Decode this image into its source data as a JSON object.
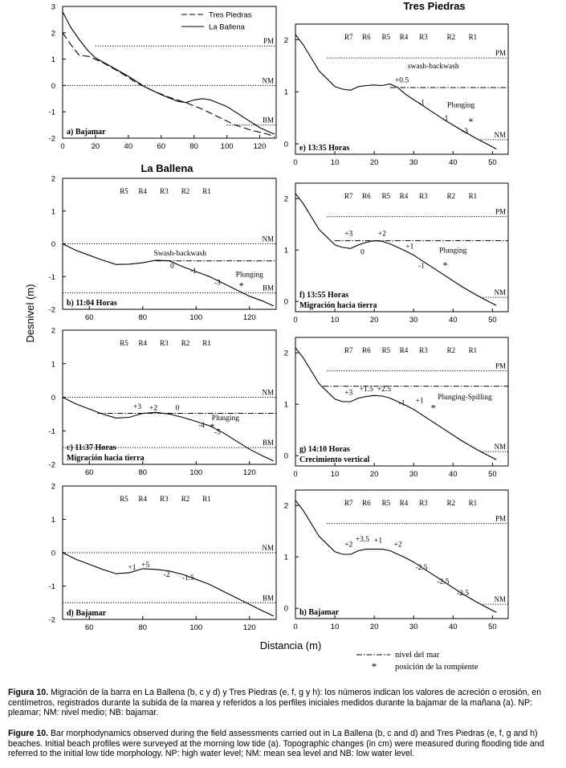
{
  "figure": {
    "ylabel": "Desnivel (m)",
    "xlabel": "Distancia (m)",
    "left_header": "La Ballena",
    "right_header": "Tres Piedras",
    "legend": {
      "series": [
        "Tres Piedras",
        "La Ballena"
      ]
    },
    "legend_bottom": {
      "sea": "nivel del mar",
      "break": "posición de la rompiente"
    }
  },
  "caption": {
    "es_bold": "Figura 10.",
    "es_text": " Migración de la barra en La Ballena (b, c y d) y Tres Piedras (e, f, g y h): los números indican los valores de acreción o erosión, en centímetros, registrados durante la subida de la marea y referidos a los perfiles iniciales medidos durante la bajamar de la mañana (a). NP: pleamar; NM: nivel medio; NB: bajamar.",
    "en_bold": "Figure 10.",
    "en_text": " Bar morphodynamics observed during the field assessments carried out in La Ballena (b, c and d) and Tres Piedras (e, f, g and h) beaches. Initial beach profiles were surveyed at the morning low tide (a). Topographic changes (in cm) were measured during flooding tide and referred to the initial low tide morphology. NP: high water level; NM: mean sea level and NB: low water level."
  },
  "chart_data": [
    {
      "id": "a",
      "type": "line",
      "title": "a) Bajamar",
      "xlim": [
        0,
        130
      ],
      "ylim": [
        -2,
        3
      ],
      "xticks": [
        0,
        20,
        40,
        60,
        80,
        100,
        120
      ],
      "yticks": [
        -2,
        -1,
        0,
        1,
        2,
        3
      ],
      "levels": [
        {
          "label": "PM",
          "y": 1.5
        },
        {
          "label": "NM",
          "y": 0
        },
        {
          "label": "BM",
          "y": -1.5
        }
      ],
      "series": [
        {
          "name": "Tres Piedras",
          "dashed": true,
          "x": [
            0,
            5,
            10,
            16,
            25,
            35,
            45,
            55,
            65,
            75,
            85,
            95,
            105,
            115,
            125,
            129
          ],
          "y": [
            2.0,
            1.55,
            1.15,
            1.1,
            0.85,
            0.5,
            0.1,
            -0.2,
            -0.45,
            -0.65,
            -0.9,
            -1.2,
            -1.5,
            -1.7,
            -1.85,
            -1.95
          ]
        },
        {
          "name": "La Ballena",
          "dashed": false,
          "x": [
            0,
            5,
            10,
            15,
            20,
            30,
            40,
            50,
            60,
            70,
            75,
            80,
            85,
            90,
            100,
            110,
            120,
            129
          ],
          "y": [
            2.8,
            2.2,
            1.75,
            1.35,
            1.05,
            0.7,
            0.35,
            -0.05,
            -0.35,
            -0.6,
            -0.65,
            -0.55,
            -0.5,
            -0.55,
            -0.8,
            -1.2,
            -1.6,
            -1.85
          ]
        }
      ]
    },
    {
      "id": "b",
      "type": "line",
      "title": "b) 11:04 Horas",
      "xlim": [
        50,
        130
      ],
      "ylim": [
        -2,
        2
      ],
      "xticks": [
        60,
        80,
        100,
        120
      ],
      "yticks": [
        -2,
        -1,
        0,
        1,
        2
      ],
      "levels": [
        {
          "label": "NM",
          "y": 0
        },
        {
          "label": "BM",
          "y": -1.5
        }
      ],
      "sea_level": -0.52,
      "sea_from": 85,
      "break_point": [
        117,
        -1.25
      ],
      "rods": [
        {
          "label": "R5",
          "x": 73
        },
        {
          "label": "R4",
          "x": 80
        },
        {
          "label": "R3",
          "x": 88
        },
        {
          "label": "R2",
          "x": 96
        },
        {
          "label": "R1",
          "x": 104
        }
      ],
      "labels": [
        {
          "text": "Swash-backwash",
          "x": 94,
          "y": -0.35
        },
        {
          "text": "0",
          "x": 91,
          "y": -0.75
        },
        {
          "text": "-1",
          "x": 99,
          "y": -0.9
        },
        {
          "text": "-3",
          "x": 108,
          "y": -1.25
        },
        {
          "text": "Plunging",
          "x": 120,
          "y": -1.0
        }
      ],
      "x": [
        50,
        55,
        60,
        65,
        70,
        75,
        80,
        85,
        90,
        95,
        100,
        105,
        110,
        115,
        120,
        125,
        129
      ],
      "y": [
        0,
        -0.2,
        -0.35,
        -0.5,
        -0.63,
        -0.62,
        -0.58,
        -0.5,
        -0.52,
        -0.7,
        -0.85,
        -1.0,
        -1.2,
        -1.4,
        -1.6,
        -1.75,
        -1.9
      ]
    },
    {
      "id": "c",
      "type": "line",
      "title": "c) 11:37 Horas",
      "subtitle": "Migración hacia tierra",
      "xlim": [
        50,
        130
      ],
      "ylim": [
        -2,
        2
      ],
      "xticks": [
        60,
        80,
        100,
        120
      ],
      "yticks": [
        -2,
        -1,
        0,
        1,
        2
      ],
      "levels": [
        {
          "label": "NM",
          "y": 0
        },
        {
          "label": "BM",
          "y": -1.5
        }
      ],
      "sea_level": -0.48,
      "sea_from": 63,
      "break_point": [
        106,
        -0.85
      ],
      "rods": [
        {
          "label": "R5",
          "x": 73
        },
        {
          "label": "R4",
          "x": 80
        },
        {
          "label": "R3",
          "x": 88
        },
        {
          "label": "R2",
          "x": 96
        },
        {
          "label": "R1",
          "x": 104
        }
      ],
      "labels": [
        {
          "text": "+3",
          "x": 78,
          "y": -0.35
        },
        {
          "text": "+2",
          "x": 84,
          "y": -0.38
        },
        {
          "text": "0",
          "x": 93,
          "y": -0.38
        },
        {
          "text": "-4",
          "x": 102,
          "y": -0.9
        },
        {
          "text": "-5",
          "x": 108,
          "y": -1.1
        },
        {
          "text": "Plunging",
          "x": 111,
          "y": -0.68
        }
      ],
      "x": [
        50,
        55,
        60,
        65,
        70,
        75,
        80,
        85,
        90,
        95,
        100,
        105,
        110,
        115,
        120,
        125,
        129
      ],
      "y": [
        0,
        -0.2,
        -0.35,
        -0.5,
        -0.62,
        -0.6,
        -0.48,
        -0.45,
        -0.5,
        -0.6,
        -0.72,
        -0.85,
        -1.05,
        -1.3,
        -1.55,
        -1.75,
        -1.9
      ]
    },
    {
      "id": "d",
      "type": "line",
      "title": "d) Bajamar",
      "xlim": [
        50,
        130
      ],
      "ylim": [
        -2,
        2
      ],
      "xticks": [
        60,
        80,
        100,
        120
      ],
      "yticks": [
        -2,
        -1,
        0,
        1,
        2
      ],
      "levels": [
        {
          "label": "NM",
          "y": 0
        },
        {
          "label": "BM",
          "y": -1.5
        }
      ],
      "rods": [
        {
          "label": "R5",
          "x": 73
        },
        {
          "label": "R4",
          "x": 80
        },
        {
          "label": "R3",
          "x": 88
        },
        {
          "label": "R2",
          "x": 96
        },
        {
          "label": "R1",
          "x": 104
        }
      ],
      "labels": [
        {
          "text": "+1",
          "x": 76,
          "y": -0.5
        },
        {
          "text": "+5",
          "x": 81,
          "y": -0.43
        },
        {
          "text": "-2",
          "x": 89,
          "y": -0.72
        },
        {
          "text": "-1.5",
          "x": 97,
          "y": -0.82
        }
      ],
      "x": [
        50,
        55,
        60,
        65,
        70,
        75,
        80,
        85,
        90,
        95,
        100,
        105,
        110,
        115,
        120,
        125,
        129
      ],
      "y": [
        0,
        -0.2,
        -0.35,
        -0.5,
        -0.63,
        -0.6,
        -0.48,
        -0.5,
        -0.55,
        -0.65,
        -0.8,
        -0.95,
        -1.15,
        -1.35,
        -1.55,
        -1.75,
        -1.9
      ]
    },
    {
      "id": "e",
      "type": "line",
      "title": "e) 13:35 Horas",
      "xlim": [
        0,
        54
      ],
      "ylim": [
        -0.2,
        2.3
      ],
      "xticks": [
        0,
        10,
        20,
        30,
        40,
        50
      ],
      "yticks": [
        0,
        1,
        2
      ],
      "levels": [
        {
          "label": "PM",
          "y": 1.65
        },
        {
          "label": "NM",
          "y": 0.08
        }
      ],
      "sea_level": 1.08,
      "sea_from": 24,
      "break_point": [
        44.5,
        0.45
      ],
      "rods": [
        {
          "label": "R7",
          "x": 13.5
        },
        {
          "label": "R6",
          "x": 18
        },
        {
          "label": "R5",
          "x": 23
        },
        {
          "label": "R4",
          "x": 27.5
        },
        {
          "label": "R3",
          "x": 32.5
        },
        {
          "label": "R2",
          "x": 39.5
        },
        {
          "label": "R1",
          "x": 45
        }
      ],
      "labels": [
        {
          "text": "swash-backwash",
          "x": 35,
          "y": 1.45
        },
        {
          "text": "+0.5",
          "x": 27,
          "y": 1.18
        },
        {
          "text": "-1",
          "x": 32,
          "y": 0.75
        },
        {
          "text": "Plunging",
          "x": 42,
          "y": 0.7
        },
        {
          "text": "-1",
          "x": 38,
          "y": 0.45
        },
        {
          "text": "-3",
          "x": 43,
          "y": 0.2
        },
        {
          "text": "NM",
          "x": 51,
          "y": 0.15
        }
      ],
      "x": [
        0,
        2,
        4,
        6,
        8,
        10,
        12,
        14,
        16,
        18,
        20,
        22,
        24,
        26,
        28,
        30,
        34,
        38,
        42,
        46,
        49,
        51
      ],
      "y": [
        2.1,
        1.9,
        1.65,
        1.4,
        1.25,
        1.1,
        1.05,
        1.03,
        1.1,
        1.12,
        1.13,
        1.12,
        1.15,
        1.08,
        0.95,
        0.85,
        0.65,
        0.45,
        0.27,
        0.1,
        -0.02,
        -0.1
      ]
    },
    {
      "id": "f",
      "type": "line",
      "title": "f) 13:55 Horas",
      "subtitle": "Migración hacia tierra",
      "xlim": [
        0,
        54
      ],
      "ylim": [
        -0.2,
        2.3
      ],
      "xticks": [
        0,
        10,
        20,
        30,
        40,
        50
      ],
      "yticks": [
        0,
        1,
        2
      ],
      "levels": [
        {
          "label": "PM",
          "y": 1.65
        },
        {
          "label": "NM",
          "y": 0.08
        }
      ],
      "sea_level": 1.18,
      "sea_from": 10,
      "break_point": [
        38,
        0.72
      ],
      "rods": [
        {
          "label": "R7",
          "x": 13.5
        },
        {
          "label": "R6",
          "x": 18
        },
        {
          "label": "R5",
          "x": 23
        },
        {
          "label": "R4",
          "x": 27.5
        },
        {
          "label": "R3",
          "x": 32.5
        },
        {
          "label": "R2",
          "x": 39.5
        },
        {
          "label": "R1",
          "x": 45
        }
      ],
      "labels": [
        {
          "text": "+3",
          "x": 13.5,
          "y": 1.28
        },
        {
          "text": "+2",
          "x": 22,
          "y": 1.28
        },
        {
          "text": "0",
          "x": 17,
          "y": 0.92
        },
        {
          "text": "+1",
          "x": 29,
          "y": 1.03
        },
        {
          "text": "Plunging",
          "x": 40,
          "y": 0.95
        },
        {
          "text": "-1",
          "x": 32,
          "y": 0.65
        },
        {
          "text": "NM",
          "x": 51,
          "y": 0.15
        }
      ],
      "x": [
        0,
        2,
        4,
        6,
        8,
        10,
        12,
        14,
        16,
        18,
        20,
        22,
        24,
        26,
        28,
        30,
        34,
        38,
        42,
        46,
        49,
        51
      ],
      "y": [
        2.1,
        1.9,
        1.65,
        1.4,
        1.25,
        1.1,
        1.05,
        1.03,
        1.1,
        1.15,
        1.18,
        1.17,
        1.12,
        1.05,
        0.98,
        0.9,
        0.7,
        0.5,
        0.3,
        0.12,
        0.0,
        -0.08
      ]
    },
    {
      "id": "g",
      "type": "line",
      "title": "g) 14:10 Horas",
      "subtitle": "Crecimiento vertical",
      "xlim": [
        0,
        54
      ],
      "ylim": [
        -0.2,
        2.3
      ],
      "xticks": [
        0,
        10,
        20,
        30,
        40,
        50
      ],
      "yticks": [
        0,
        1,
        2
      ],
      "levels": [
        {
          "label": "PM",
          "y": 1.65
        },
        {
          "label": "NM",
          "y": 0.08
        }
      ],
      "sea_level": 1.35,
      "sea_from": 7,
      "break_point": [
        35,
        0.95
      ],
      "rods": [
        {
          "label": "R7",
          "x": 13.5
        },
        {
          "label": "R6",
          "x": 18
        },
        {
          "label": "R5",
          "x": 23
        },
        {
          "label": "R4",
          "x": 27.5
        },
        {
          "label": "R3",
          "x": 32.5
        },
        {
          "label": "R2",
          "x": 39.5
        },
        {
          "label": "R1",
          "x": 45
        }
      ],
      "labels": [
        {
          "text": "+3",
          "x": 13.5,
          "y": 1.18
        },
        {
          "text": "+1.5",
          "x": 18,
          "y": 1.25
        },
        {
          "text": "+2.5",
          "x": 22.5,
          "y": 1.25
        },
        {
          "text": "-1",
          "x": 27,
          "y": 0.98
        },
        {
          "text": "+1",
          "x": 31.5,
          "y": 1.03
        },
        {
          "text": "Plunging-Spilling",
          "x": 43,
          "y": 1.1
        },
        {
          "text": "NM",
          "x": 51,
          "y": 0.15
        }
      ],
      "x": [
        0,
        2,
        4,
        6,
        8,
        10,
        12,
        14,
        16,
        18,
        20,
        22,
        24,
        26,
        28,
        30,
        34,
        38,
        42,
        46,
        49,
        51
      ],
      "y": [
        2.1,
        1.9,
        1.65,
        1.4,
        1.25,
        1.1,
        1.05,
        1.05,
        1.12,
        1.15,
        1.17,
        1.16,
        1.12,
        1.05,
        0.98,
        0.9,
        0.7,
        0.5,
        0.3,
        0.12,
        0.0,
        -0.08
      ]
    },
    {
      "id": "h",
      "type": "line",
      "title": "h) Bajamar",
      "xlim": [
        0,
        54
      ],
      "ylim": [
        -0.2,
        2.3
      ],
      "xticks": [
        0,
        10,
        20,
        30,
        40,
        50
      ],
      "yticks": [
        0,
        1,
        2
      ],
      "levels": [
        {
          "label": "PM",
          "y": 1.65
        },
        {
          "label": "NM",
          "y": 0.08
        }
      ],
      "rods": [
        {
          "label": "R7",
          "x": 13.5
        },
        {
          "label": "R6",
          "x": 18
        },
        {
          "label": "R5",
          "x": 23
        },
        {
          "label": "R4",
          "x": 27.5
        },
        {
          "label": "R3",
          "x": 32.5
        },
        {
          "label": "R2",
          "x": 39.5
        },
        {
          "label": "R1",
          "x": 45
        }
      ],
      "labels": [
        {
          "text": "+2",
          "x": 13.5,
          "y": 1.2
        },
        {
          "text": "+3.5",
          "x": 17,
          "y": 1.3
        },
        {
          "text": "+1",
          "x": 21,
          "y": 1.28
        },
        {
          "text": "+2",
          "x": 26,
          "y": 1.2
        },
        {
          "text": "-2.5",
          "x": 32,
          "y": 0.75
        },
        {
          "text": "-2.5",
          "x": 37.5,
          "y": 0.48
        },
        {
          "text": "-2.5",
          "x": 42.5,
          "y": 0.25
        },
        {
          "text": "NM",
          "x": 51,
          "y": 0.15
        }
      ],
      "x": [
        0,
        2,
        4,
        6,
        8,
        10,
        12,
        14,
        16,
        18,
        20,
        22,
        24,
        26,
        28,
        30,
        34,
        38,
        42,
        46,
        49,
        51
      ],
      "y": [
        2.1,
        1.9,
        1.65,
        1.4,
        1.25,
        1.1,
        1.05,
        1.05,
        1.12,
        1.15,
        1.15,
        1.15,
        1.12,
        1.05,
        0.98,
        0.9,
        0.7,
        0.5,
        0.3,
        0.12,
        0.0,
        -0.08
      ]
    }
  ]
}
